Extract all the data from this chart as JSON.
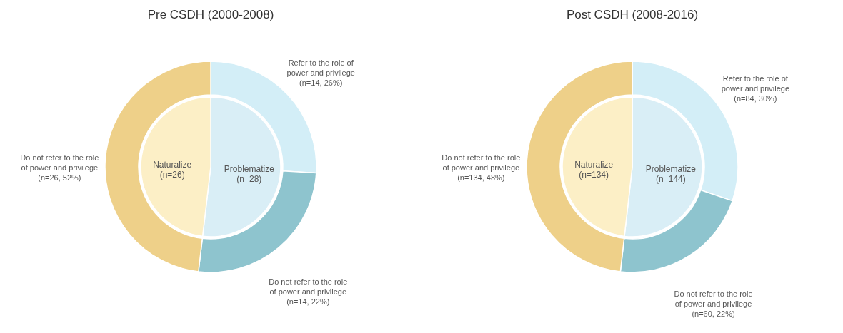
{
  "chart_data": [
    {
      "type": "pie",
      "categories": [
        "Problematize",
        "Naturalize"
      ],
      "values": [
        28,
        26
      ],
      "value_labels": [
        "(n=28)",
        "(n=26)"
      ],
      "colors": [
        "#d9eef6",
        "#fcefc6"
      ]
    },
    {
      "type": "donut",
      "title": "Pre CSDH (2000-2008)",
      "categories": [
        "Refer to the role of power and privilege",
        "Do not refer to the role of power and privilege",
        "Do not refer to the role of power and privilege"
      ],
      "values": [
        14,
        14,
        26
      ],
      "value_labels": [
        "(n=14, 26%)",
        "(n=14, 22%)",
        "(n=26, 52%)"
      ],
      "colors": [
        "#d3eef7",
        "#8ec4ce",
        "#eed089"
      ]
    },
    {
      "type": "pie",
      "categories": [
        "Problematize",
        "Naturalize"
      ],
      "values": [
        144,
        134
      ],
      "value_labels": [
        "(n=144)",
        "(n=134)"
      ],
      "colors": [
        "#d9eef6",
        "#fcefc6"
      ]
    },
    {
      "type": "donut",
      "title": "Post CSDH (2008-2016)",
      "categories": [
        "Refer to the role of power and privilege",
        "Do not refer to the role of power and privilege",
        "Do not refer to the role of power and privilege"
      ],
      "values": [
        84,
        60,
        134
      ],
      "value_labels": [
        "(n=84, 30%)",
        "(n=60, 22%)",
        "(n=134, 48%)"
      ],
      "colors": [
        "#d3eef7",
        "#8ec4ce",
        "#eed089"
      ]
    }
  ]
}
